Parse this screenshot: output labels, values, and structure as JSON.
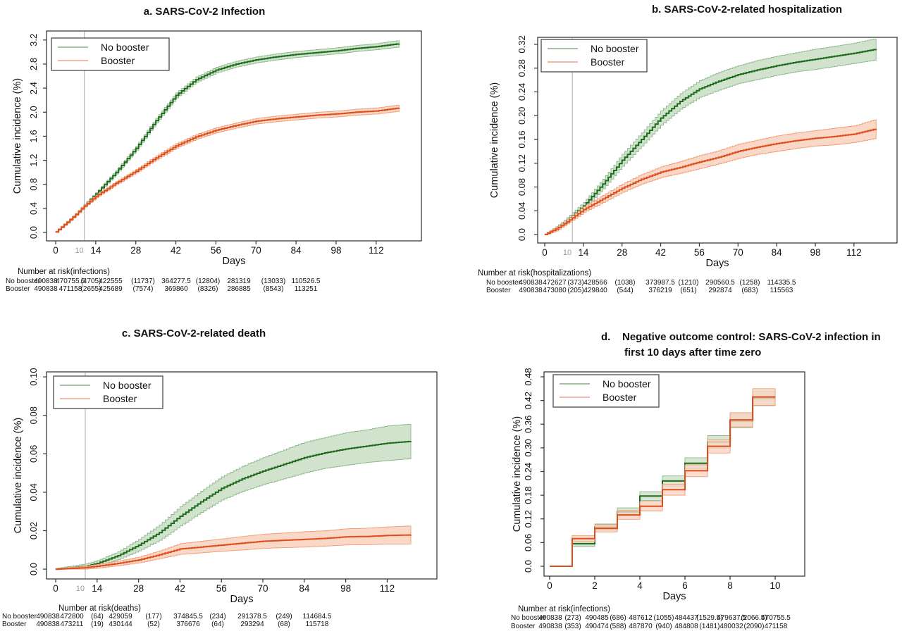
{
  "colors": {
    "no_booster_line": "#1d6b1d",
    "no_booster_band": "#cfe2ca",
    "no_booster_band_edge": "#8db88d",
    "booster_line": "#dd4e1b",
    "booster_band": "#f9d6c5",
    "booster_band_edge": "#f09c76",
    "legend_no_booster_swatch": "#8aa88a",
    "legend_booster_swatch": "#eda286",
    "refline": "#aaaaaa",
    "refline_text": "#9b9b9b",
    "axis_text": "#111111",
    "plot_border": "#2b2b2b"
  },
  "chart_data": [
    {
      "id": "a",
      "type": "km",
      "title": "a. SARS-CoV-2 Infection",
      "xlabel": "Days",
      "ylabel": "Cumulative incidence (%)",
      "xticks": [
        0,
        14,
        28,
        42,
        56,
        70,
        84,
        98,
        112
      ],
      "yticks": [
        "0.0",
        "0.4",
        "0.8",
        "1.2",
        "1.6",
        "2.0",
        "2.4",
        "2.8",
        "3.2"
      ],
      "ytick_values": [
        0,
        0.4,
        0.8,
        1.2,
        1.6,
        2.0,
        2.4,
        2.8,
        3.2
      ],
      "xlim": [
        -3.2,
        127.8
      ],
      "ylim": [
        -0.14,
        3.35
      ],
      "refline_x": 10,
      "refline_label": "10",
      "legend": [
        "No booster",
        "Booster"
      ],
      "series": [
        {
          "name": "No booster",
          "x": [
            0,
            4,
            7,
            10,
            14,
            21,
            28,
            35,
            42,
            49,
            56,
            63,
            70,
            77,
            84,
            91,
            98,
            105,
            112,
            120
          ],
          "y": [
            0.01,
            0.17,
            0.3,
            0.45,
            0.64,
            1.0,
            1.4,
            1.86,
            2.28,
            2.54,
            2.7,
            2.8,
            2.87,
            2.92,
            2.96,
            2.99,
            3.02,
            3.06,
            3.09,
            3.14
          ],
          "ci": [
            0.01,
            0.016,
            0.018,
            0.02,
            0.024,
            0.028,
            0.033,
            0.038,
            0.042,
            0.045,
            0.047,
            0.048,
            0.049,
            0.05,
            0.05,
            0.05,
            0.05,
            0.05,
            0.05,
            0.055
          ]
        },
        {
          "name": "Booster",
          "x": [
            0,
            4,
            7,
            10,
            14,
            21,
            28,
            35,
            42,
            49,
            56,
            63,
            70,
            77,
            84,
            91,
            98,
            105,
            112,
            120
          ],
          "y": [
            0.01,
            0.17,
            0.3,
            0.44,
            0.6,
            0.82,
            1.02,
            1.24,
            1.44,
            1.59,
            1.7,
            1.78,
            1.85,
            1.89,
            1.92,
            1.95,
            1.97,
            2.0,
            2.02,
            2.07
          ],
          "ci": [
            0.01,
            0.015,
            0.017,
            0.02,
            0.022,
            0.026,
            0.03,
            0.034,
            0.038,
            0.04,
            0.042,
            0.044,
            0.046,
            0.047,
            0.048,
            0.048,
            0.049,
            0.05,
            0.05,
            0.053
          ]
        }
      ],
      "risk": {
        "title": "Number at risk(infections)",
        "rows": [
          {
            "label": "No booster",
            "values": [
              "490838",
              "470755.5",
              "(4705)",
              "422555",
              "(11737)",
              "364277.5",
              "(12804)",
              "281319",
              "(13033)",
              "110526.5"
            ]
          },
          {
            "label": "Booster",
            "values": [
              "490838",
              "471158",
              "(2655)",
              "425689",
              "(7574)",
              "369860",
              "(8326)",
              "286885",
              "(8543)",
              "113251"
            ]
          }
        ]
      }
    },
    {
      "id": "b",
      "type": "km",
      "title": "b. SARS-CoV-2-related hospitalization",
      "xlabel": "Days",
      "ylabel": "Cumulative incidence (%)",
      "xticks": [
        0,
        14,
        28,
        42,
        56,
        70,
        84,
        98,
        112
      ],
      "yticks": [
        "0.0",
        "0.04",
        "0.08",
        "0.12",
        "0.16",
        "0.20",
        "0.24",
        "0.28",
        "0.32"
      ],
      "ytick_values": [
        0,
        0.04,
        0.08,
        0.12,
        0.16,
        0.2,
        0.24,
        0.28,
        0.32
      ],
      "xlim": [
        -2.55,
        127.6
      ],
      "ylim": [
        -0.0142,
        0.3318
      ],
      "refline_x": 10,
      "refline_label": "10",
      "legend": [
        "No booster",
        "Booster"
      ],
      "series": [
        {
          "name": "No booster",
          "x": [
            0,
            4,
            7,
            10,
            14,
            21,
            28,
            35,
            42,
            49,
            56,
            63,
            70,
            77,
            84,
            91,
            98,
            105,
            112,
            120
          ],
          "y": [
            0.0,
            0.01,
            0.02,
            0.032,
            0.048,
            0.085,
            0.125,
            0.16,
            0.196,
            0.224,
            0.245,
            0.258,
            0.269,
            0.277,
            0.284,
            0.29,
            0.295,
            0.3,
            0.305,
            0.312
          ],
          "ci": [
            0.001,
            0.003,
            0.004,
            0.005,
            0.006,
            0.008,
            0.01,
            0.011,
            0.012,
            0.013,
            0.014,
            0.015,
            0.015,
            0.016,
            0.016,
            0.016,
            0.017,
            0.017,
            0.017,
            0.018
          ]
        },
        {
          "name": "Booster",
          "x": [
            0,
            4,
            7,
            10,
            14,
            21,
            28,
            35,
            42,
            49,
            56,
            63,
            70,
            77,
            84,
            91,
            98,
            105,
            112,
            120
          ],
          "y": [
            0.0,
            0.009,
            0.018,
            0.028,
            0.042,
            0.06,
            0.078,
            0.093,
            0.105,
            0.113,
            0.122,
            0.13,
            0.14,
            0.147,
            0.153,
            0.158,
            0.162,
            0.165,
            0.169,
            0.178
          ],
          "ci": [
            0.001,
            0.003,
            0.003,
            0.004,
            0.005,
            0.006,
            0.007,
            0.008,
            0.009,
            0.01,
            0.011,
            0.011,
            0.012,
            0.012,
            0.013,
            0.013,
            0.013,
            0.014,
            0.014,
            0.016
          ]
        }
      ],
      "risk": {
        "title": "Number at risk(hospitalizations)",
        "rows": [
          {
            "label": "No booster",
            "values": [
              "490838",
              "472627",
              "(373)",
              "428566",
              "(1038)",
              "373987.5",
              "(1210)",
              "290560.5",
              "(1258)",
              "114335.5"
            ]
          },
          {
            "label": "Booster",
            "values": [
              "490838",
              "473080",
              "(205)",
              "429840",
              "(544)",
              "376219",
              "(651)",
              "292874",
              "(683)",
              "115563"
            ]
          }
        ]
      }
    },
    {
      "id": "c",
      "type": "km",
      "title": "c. SARS-CoV-2-related death",
      "xlabel": "Days",
      "ylabel": "Cumulative incidence (%)",
      "xticks": [
        0,
        14,
        28,
        42,
        56,
        70,
        84,
        98,
        112
      ],
      "yticks": [
        "0.0",
        "0.02",
        "0.04",
        "0.06",
        "0.08",
        "0.10"
      ],
      "ytick_values": [
        0,
        0.02,
        0.04,
        0.06,
        0.08,
        0.1
      ],
      "xlim": [
        -3.1,
        128.8
      ],
      "ylim": [
        -0.0051,
        0.1026
      ],
      "refline_x": 10,
      "refline_label": "10",
      "legend": [
        "No booster",
        "Booster"
      ],
      "series": [
        {
          "name": "No booster",
          "x": [
            0,
            4,
            7,
            10,
            14,
            21,
            28,
            35,
            42,
            49,
            56,
            63,
            70,
            77,
            84,
            91,
            98,
            105,
            112,
            120
          ],
          "y": [
            0.0,
            0.0005,
            0.001,
            0.0015,
            0.003,
            0.007,
            0.0125,
            0.019,
            0.0275,
            0.035,
            0.042,
            0.047,
            0.051,
            0.0545,
            0.058,
            0.0605,
            0.0625,
            0.064,
            0.0655,
            0.0665
          ],
          "ci": [
            0.0004,
            0.0008,
            0.001,
            0.0012,
            0.0015,
            0.002,
            0.003,
            0.004,
            0.005,
            0.0055,
            0.006,
            0.0065,
            0.007,
            0.0075,
            0.008,
            0.008,
            0.0085,
            0.0085,
            0.009,
            0.009
          ]
        },
        {
          "name": "Booster",
          "x": [
            0,
            4,
            7,
            10,
            14,
            21,
            28,
            35,
            42,
            49,
            56,
            63,
            70,
            77,
            84,
            91,
            98,
            105,
            112,
            120
          ],
          "y": [
            0.0,
            0.0003,
            0.0005,
            0.0008,
            0.0015,
            0.003,
            0.0048,
            0.0075,
            0.0105,
            0.0115,
            0.0125,
            0.0135,
            0.0145,
            0.015,
            0.0155,
            0.016,
            0.0168,
            0.017,
            0.0175,
            0.0178
          ],
          "ci": [
            0.0003,
            0.0005,
            0.0006,
            0.0008,
            0.001,
            0.0012,
            0.0015,
            0.002,
            0.0028,
            0.003,
            0.0032,
            0.0035,
            0.0037,
            0.0038,
            0.004,
            0.004,
            0.0042,
            0.0043,
            0.0045,
            0.0047
          ]
        }
      ],
      "risk": {
        "title": "Number at risk(deaths)",
        "rows": [
          {
            "label": "No booster",
            "values": [
              "490838",
              "472800",
              "(64)",
              "429059",
              "(177)",
              "374845.5",
              "(234)",
              "291378.5",
              "(249)",
              "114684.5"
            ]
          },
          {
            "label": "Booster",
            "values": [
              "490838",
              "473211",
              "(19)",
              "430144",
              "(52)",
              "376676",
              "(64)",
              "293294",
              "(68)",
              "115718"
            ]
          }
        ]
      }
    },
    {
      "id": "d",
      "type": "step",
      "title_line1": "d.    Negative outcome control: SARS-CoV-2 infection in",
      "title_line2": "first 10 days after time zero",
      "xlabel": "Days",
      "ylabel": "Cumulative incidence (%)",
      "xticks": [
        0,
        2,
        4,
        6,
        8,
        10
      ],
      "yticks": [
        "0.0",
        "0.06",
        "0.12",
        "0.18",
        "0.24",
        "0.30",
        "0.36",
        "0.42",
        "0.48"
      ],
      "ytick_values": [
        0,
        0.06,
        0.12,
        0.18,
        0.24,
        0.3,
        0.36,
        0.42,
        0.48
      ],
      "xlim": [
        -0.25,
        11.31
      ],
      "ylim": [
        -0.025,
        0.4925
      ],
      "refline_x": null,
      "refline_label": "",
      "legend": [
        "No booster",
        "Booster"
      ],
      "series": [
        {
          "name": "No booster",
          "x": [
            0,
            1,
            2,
            3,
            4,
            5,
            6,
            7,
            8,
            9,
            10
          ],
          "y": [
            0,
            0.057,
            0.099,
            0.138,
            0.178,
            0.216,
            0.261,
            0.315,
            0.368,
            0.425,
            0.425
          ],
          "ci": [
            0,
            0.007,
            0.008,
            0.01,
            0.011,
            0.013,
            0.014,
            0.016,
            0.017,
            0.018,
            0.018
          ]
        },
        {
          "name": "Booster",
          "x": [
            0,
            1,
            2,
            3,
            4,
            5,
            6,
            7,
            8,
            9,
            10
          ],
          "y": [
            0,
            0.07,
            0.096,
            0.13,
            0.152,
            0.194,
            0.242,
            0.304,
            0.371,
            0.429,
            0.429
          ],
          "ci": [
            0,
            0.008,
            0.009,
            0.011,
            0.012,
            0.014,
            0.015,
            0.017,
            0.018,
            0.021,
            0.021
          ]
        }
      ],
      "risk": {
        "title": "Number at risk(infections)",
        "rows": [
          {
            "label": "No booster",
            "values": [
              "490838",
              "(273)",
              "490485",
              "(686)",
              "487612",
              "(1055)",
              "484437",
              "(1529.5)",
              "479637.5",
              "(2066.5)",
              "470755.5"
            ]
          },
          {
            "label": "Booster",
            "values": [
              "490838",
              "(353)",
              "490474",
              "(588)",
              "487870",
              "(940)",
              "484808",
              "(1481)",
              "480032",
              "(2090)",
              "471158"
            ]
          }
        ]
      }
    }
  ]
}
